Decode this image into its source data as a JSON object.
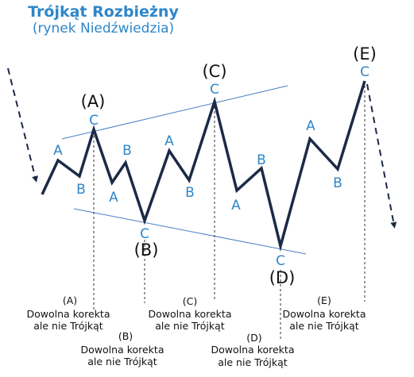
{
  "title": "Trójkąt Rozbieżny",
  "subtitle": "(rynek Niedźwiedzia)",
  "colors": {
    "wave": "#1b2a47",
    "label": "#2e86c9",
    "trendline": "#4a7fc4",
    "text": "#111111"
  },
  "wave_labels": [
    "A",
    "B",
    "C",
    "B",
    "A",
    "C",
    "A",
    "B",
    "C",
    "A",
    "B",
    "C",
    "A",
    "B",
    "C"
  ],
  "point_labels": [
    "(A)",
    "(B)",
    "(C)",
    "(D)",
    "(E)"
  ],
  "notes": [
    {
      "tag": "(A)",
      "line1": "Dowolna korekta",
      "line2": "ale nie Trójkąt"
    },
    {
      "tag": "(B)",
      "line1": "Dowolna korekta",
      "line2": "ale nie Trójkąt"
    },
    {
      "tag": "(C)",
      "line1": "Dowolna korekta",
      "line2": "ale nie Trójkąt"
    },
    {
      "tag": "(D)",
      "line1": "Dowolna korekta",
      "line2": "ale nie Trójkąt"
    },
    {
      "tag": "(E)",
      "line1": "Dowolna korekta",
      "line2": "ale nie Trójkąt"
    }
  ]
}
